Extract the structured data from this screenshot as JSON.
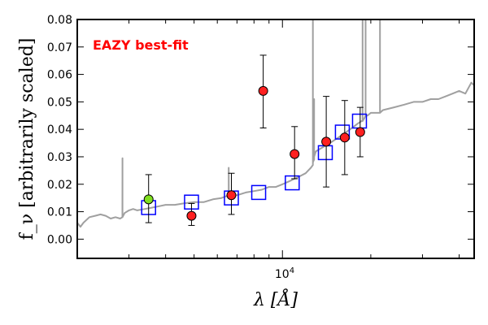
{
  "chart_data": {
    "type": "scatter",
    "title": "",
    "xlabel": "λ [Å]",
    "ylabel": "f_ν [arbitrarily scaled]",
    "xscale": "log",
    "xlim": [
      2000,
      45000
    ],
    "ylim": [
      -0.007,
      0.08
    ],
    "y_ticks": [
      0.0,
      0.01,
      0.02,
      0.03,
      0.04,
      0.05,
      0.06,
      0.07,
      0.08
    ],
    "y_tick_labels": [
      "0.00",
      "0.01",
      "0.02",
      "0.03",
      "0.04",
      "0.05",
      "0.06",
      "0.07",
      "0.08"
    ],
    "x_tick_label": "10^4",
    "annotation": {
      "text": "EAZY best-fit",
      "color": "#ff0000"
    },
    "template": {
      "color": "#a0a0a0",
      "x": [
        2000,
        2050,
        2100,
        2200,
        2300,
        2400,
        2500,
        2600,
        2700,
        2800,
        2850,
        2851,
        2852,
        2900,
        3000,
        3100,
        3200,
        3400,
        3600,
        3800,
        4000,
        4300,
        4600,
        5000,
        5400,
        5800,
        6200,
        6562,
        6563,
        6564,
        7000,
        7500,
        8000,
        8500,
        9000,
        9500,
        10000,
        10500,
        11000,
        11500,
        12000,
        12500,
        12700,
        12701,
        12702,
        12820,
        12821,
        12822,
        13000,
        13500,
        14000,
        14500,
        15000,
        15500,
        16000,
        16500,
        17000,
        17500,
        18000,
        18600,
        18750,
        18751,
        18752,
        19000,
        19200,
        19201,
        19202,
        19500,
        20000,
        21000,
        21500,
        21501,
        21502,
        22000,
        24000,
        26000,
        28000,
        30000,
        32000,
        34000,
        36000,
        38000,
        40000,
        42000,
        44000,
        45000
      ],
      "y": [
        0.006,
        0.0045,
        0.006,
        0.008,
        0.0085,
        0.009,
        0.0085,
        0.0075,
        0.008,
        0.0075,
        0.008,
        0.0295,
        0.008,
        0.0095,
        0.0105,
        0.011,
        0.0105,
        0.011,
        0.0115,
        0.012,
        0.0125,
        0.0125,
        0.013,
        0.0135,
        0.0135,
        0.0145,
        0.015,
        0.016,
        0.026,
        0.016,
        0.016,
        0.017,
        0.0175,
        0.018,
        0.019,
        0.019,
        0.02,
        0.021,
        0.022,
        0.023,
        0.024,
        0.026,
        0.027,
        0.08,
        0.028,
        0.029,
        0.051,
        0.03,
        0.032,
        0.033,
        0.034,
        0.035,
        0.036,
        0.037,
        0.038,
        0.039,
        0.04,
        0.041,
        0.042,
        0.043,
        0.043,
        0.08,
        0.043,
        0.044,
        0.045,
        0.08,
        0.045,
        0.045,
        0.046,
        0.046,
        0.046,
        0.08,
        0.046,
        0.047,
        0.048,
        0.049,
        0.05,
        0.05,
        0.051,
        0.051,
        0.052,
        0.053,
        0.054,
        0.053,
        0.057,
        0.056
      ]
    },
    "model_photometry": {
      "marker": "open-square",
      "color": "#0000ff",
      "x": [
        3500,
        4900,
        6700,
        8300,
        10800,
        14000,
        16000,
        18300
      ],
      "y": [
        0.0115,
        0.0135,
        0.015,
        0.017,
        0.0205,
        0.0315,
        0.039,
        0.043
      ]
    },
    "observed_photometry": {
      "marker": "filled-circle",
      "points": [
        {
          "x": 3500,
          "y": 0.0145,
          "yerr_low": 0.0085,
          "yerr_high": 0.009,
          "color": "#80e020"
        },
        {
          "x": 4900,
          "y": 0.0085,
          "yerr_low": 0.0035,
          "yerr_high": 0.0045,
          "color": "#ff2020"
        },
        {
          "x": 6700,
          "y": 0.016,
          "yerr_low": 0.007,
          "yerr_high": 0.008,
          "color": "#ff2020"
        },
        {
          "x": 8600,
          "y": 0.054,
          "yerr_low": 0.0135,
          "yerr_high": 0.013,
          "color": "#ff2020"
        },
        {
          "x": 11000,
          "y": 0.031,
          "yerr_low": 0.009,
          "yerr_high": 0.01,
          "color": "#ff2020"
        },
        {
          "x": 14100,
          "y": 0.0355,
          "yerr_low": 0.0165,
          "yerr_high": 0.0165,
          "color": "#ff2020"
        },
        {
          "x": 16300,
          "y": 0.037,
          "yerr_low": 0.0135,
          "yerr_high": 0.0135,
          "color": "#ff2020"
        },
        {
          "x": 18400,
          "y": 0.039,
          "yerr_low": 0.009,
          "yerr_high": 0.009,
          "color": "#ff2020"
        }
      ]
    }
  }
}
